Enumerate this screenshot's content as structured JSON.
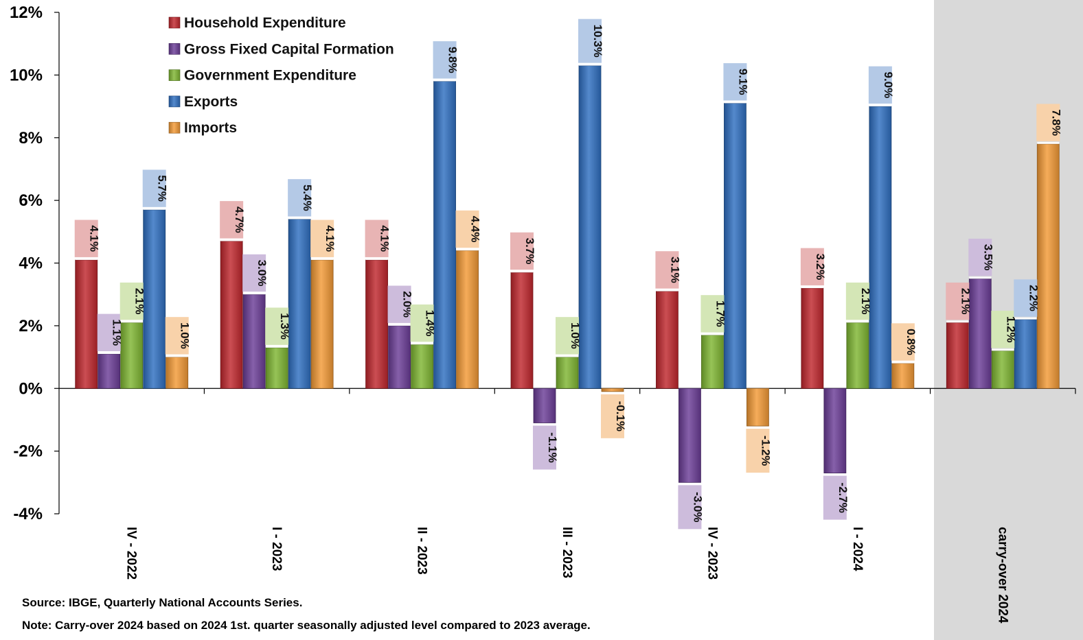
{
  "chart_data": {
    "type": "bar",
    "ylim": [
      -4,
      12
    ],
    "yticks": [
      -4,
      -2,
      0,
      2,
      4,
      6,
      8,
      10,
      12
    ],
    "ytick_suffix": "%",
    "value_suffix": "%",
    "legend_position": "top-left",
    "grid": false,
    "categories": [
      "IV - 2022",
      "I - 2023",
      "II - 2023",
      "III - 2023",
      "IV - 2023",
      "I - 2024",
      "carry-over 2024"
    ],
    "highlight_category": "carry-over 2024",
    "series": [
      {
        "name": "Household Expenditure",
        "color": "#c0272d",
        "label_bg": "#e8b4b4",
        "values": [
          4.1,
          4.7,
          4.1,
          3.7,
          3.1,
          3.2,
          2.1
        ]
      },
      {
        "name": "Gross Fixed Capital Formation",
        "color": "#6b3d97",
        "label_bg": "#cdbcdc",
        "values": [
          1.1,
          3.0,
          2.0,
          -1.1,
          -3.0,
          -2.7,
          3.5
        ]
      },
      {
        "name": "Government Expenditure",
        "color": "#7fb632",
        "label_bg": "#d4e6b6",
        "values": [
          2.1,
          1.3,
          1.4,
          1.0,
          1.7,
          2.1,
          1.2
        ]
      },
      {
        "name": "Exports",
        "color": "#2f6fc1",
        "label_bg": "#b4c9e6",
        "values": [
          5.7,
          5.4,
          9.8,
          10.3,
          9.1,
          9.0,
          2.2
        ]
      },
      {
        "name": "Imports",
        "color": "#f39a36",
        "label_bg": "#f8d2aa",
        "values": [
          1.0,
          4.1,
          4.4,
          -0.1,
          -1.2,
          0.8,
          7.8
        ]
      }
    ]
  },
  "notes": {
    "source": "Source: IBGE, Quarterly National Accounts Series.",
    "note": "Note: Carry-over 2024 based on 2024 1st. quarter seasonally adjusted level compared to 2023 average."
  }
}
